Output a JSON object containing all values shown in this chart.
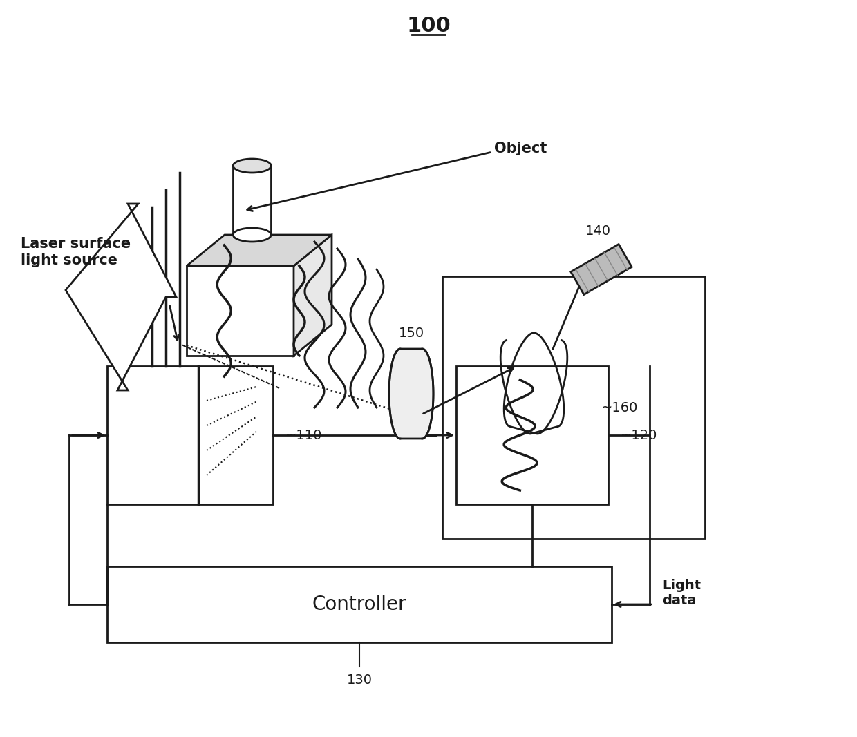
{
  "title": "100",
  "bg_color": "#ffffff",
  "lc": "#1a1a1a",
  "lw": 2.0,
  "label_110": "110",
  "label_120": "120",
  "label_130": "130",
  "label_controller": "Controller",
  "label_140": "140",
  "label_150": "150",
  "label_160": "160",
  "label_object": "Object",
  "label_laser": "Laser surface\nlight source",
  "label_lightdata": "Light\ndata"
}
